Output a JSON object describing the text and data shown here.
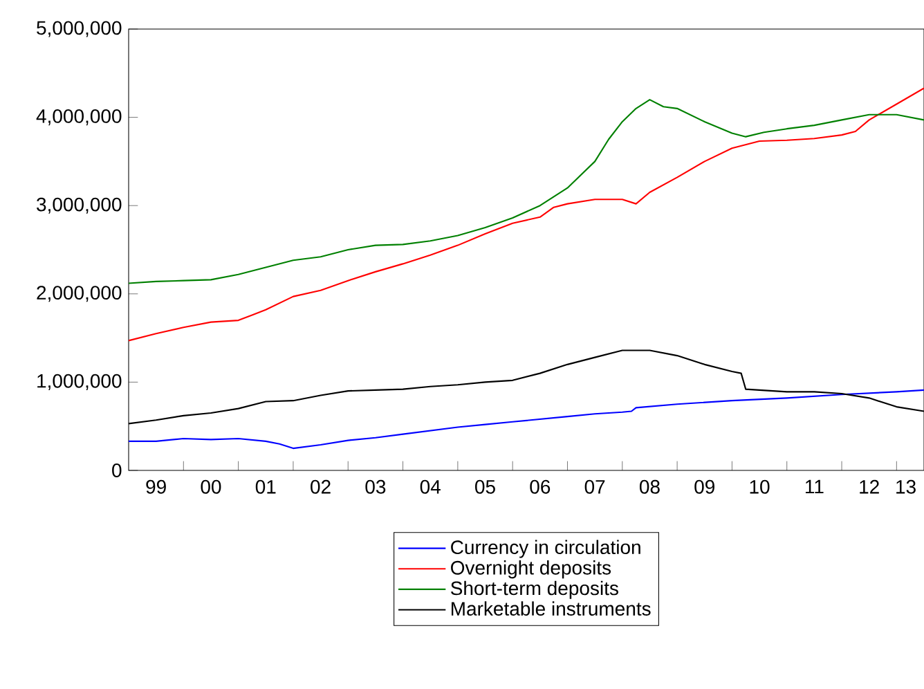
{
  "chart_data": {
    "type": "line",
    "xlim": [
      "1999-01",
      "2013-07"
    ],
    "xticks": [
      {
        "value": "1999-07",
        "label": "99"
      },
      {
        "value": "2000-07",
        "label": "00"
      },
      {
        "value": "2001-07",
        "label": "01"
      },
      {
        "value": "2002-07",
        "label": "02"
      },
      {
        "value": "2003-07",
        "label": "03"
      },
      {
        "value": "2004-07",
        "label": "04"
      },
      {
        "value": "2005-07",
        "label": "05"
      },
      {
        "value": "2006-07",
        "label": "06"
      },
      {
        "value": "2007-07",
        "label": "07"
      },
      {
        "value": "2008-07",
        "label": "08"
      },
      {
        "value": "2009-07",
        "label": "09"
      },
      {
        "value": "2010-07",
        "label": "10"
      },
      {
        "value": "2011-07",
        "label": "11"
      },
      {
        "value": "2012-07",
        "label": "12"
      },
      {
        "value": "2013-03",
        "label": "13"
      }
    ],
    "ylim": [
      0,
      5000000
    ],
    "yticks": [
      {
        "value": 0,
        "label": "0"
      },
      {
        "value": 1000000,
        "label": "1,000,000"
      },
      {
        "value": 2000000,
        "label": "2,000,000"
      },
      {
        "value": 3000000,
        "label": "3,000,000"
      },
      {
        "value": 4000000,
        "label": "4,000,000"
      },
      {
        "value": 5000000,
        "label": "5,000,000"
      }
    ],
    "legend": "bottom",
    "marker": "none",
    "line_style": "solid",
    "series": [
      {
        "name": "Currency in circulation",
        "color": "#0000ff",
        "x": [
          "1999-01",
          "1999-07",
          "2000-01",
          "2000-07",
          "2001-01",
          "2001-07",
          "2001-10",
          "2002-01",
          "2002-07",
          "2003-01",
          "2003-07",
          "2004-01",
          "2004-07",
          "2005-01",
          "2005-07",
          "2006-01",
          "2006-07",
          "2007-01",
          "2007-07",
          "2008-01",
          "2008-03",
          "2008-04",
          "2009-01",
          "2010-01",
          "2011-01",
          "2012-01",
          "2013-01",
          "2013-07"
        ],
        "values": [
          330000,
          330000,
          360000,
          350000,
          360000,
          330000,
          300000,
          250000,
          290000,
          340000,
          370000,
          410000,
          450000,
          490000,
          520000,
          550000,
          580000,
          610000,
          640000,
          660000,
          670000,
          710000,
          750000,
          790000,
          820000,
          860000,
          890000,
          910000
        ]
      },
      {
        "name": "Overnight deposits",
        "color": "#ff0000",
        "x": [
          "1999-01",
          "1999-07",
          "2000-01",
          "2000-07",
          "2001-01",
          "2001-04",
          "2001-07",
          "2002-01",
          "2002-07",
          "2003-01",
          "2003-07",
          "2004-01",
          "2004-07",
          "2005-01",
          "2005-07",
          "2006-01",
          "2006-07",
          "2006-10",
          "2007-01",
          "2007-07",
          "2008-01",
          "2008-04",
          "2008-07",
          "2009-01",
          "2009-07",
          "2010-01",
          "2010-07",
          "2011-01",
          "2011-07",
          "2012-01",
          "2012-04",
          "2012-07",
          "2013-01",
          "2013-07"
        ],
        "values": [
          1470000,
          1550000,
          1620000,
          1680000,
          1700000,
          1760000,
          1820000,
          1970000,
          2040000,
          2150000,
          2250000,
          2340000,
          2440000,
          2550000,
          2680000,
          2800000,
          2870000,
          2980000,
          3020000,
          3070000,
          3070000,
          3020000,
          3150000,
          3320000,
          3500000,
          3650000,
          3730000,
          3740000,
          3760000,
          3800000,
          3840000,
          3970000,
          4150000,
          4330000
        ]
      },
      {
        "name": "Short-term deposits",
        "color": "#008000",
        "x": [
          "1999-01",
          "1999-07",
          "2000-01",
          "2000-07",
          "2001-01",
          "2001-07",
          "2002-01",
          "2002-07",
          "2003-01",
          "2003-07",
          "2004-01",
          "2004-07",
          "2005-01",
          "2005-07",
          "2006-01",
          "2006-07",
          "2007-01",
          "2007-07",
          "2007-10",
          "2008-01",
          "2008-04",
          "2008-07",
          "2008-10",
          "2009-01",
          "2009-07",
          "2010-01",
          "2010-04",
          "2010-08",
          "2011-01",
          "2011-07",
          "2012-01",
          "2012-07",
          "2013-01",
          "2013-07"
        ],
        "values": [
          2120000,
          2140000,
          2150000,
          2160000,
          2220000,
          2300000,
          2380000,
          2420000,
          2500000,
          2550000,
          2560000,
          2600000,
          2660000,
          2750000,
          2860000,
          3000000,
          3200000,
          3500000,
          3750000,
          3950000,
          4100000,
          4200000,
          4120000,
          4100000,
          3950000,
          3820000,
          3780000,
          3830000,
          3870000,
          3910000,
          3970000,
          4030000,
          4030000,
          3970000
        ]
      },
      {
        "name": "Marketable instruments",
        "color": "#000000",
        "x": [
          "1999-01",
          "1999-07",
          "2000-01",
          "2000-07",
          "2001-01",
          "2001-07",
          "2002-01",
          "2002-07",
          "2003-01",
          "2003-07",
          "2004-01",
          "2004-07",
          "2005-01",
          "2005-07",
          "2006-01",
          "2006-07",
          "2007-01",
          "2007-07",
          "2008-01",
          "2008-07",
          "2009-01",
          "2009-07",
          "2010-01",
          "2010-03",
          "2010-04",
          "2010-07",
          "2011-01",
          "2011-07",
          "2012-01",
          "2012-07",
          "2013-01",
          "2013-07"
        ],
        "values": [
          530000,
          570000,
          620000,
          650000,
          700000,
          780000,
          790000,
          850000,
          900000,
          910000,
          920000,
          950000,
          970000,
          1000000,
          1020000,
          1100000,
          1200000,
          1280000,
          1360000,
          1360000,
          1300000,
          1200000,
          1120000,
          1100000,
          920000,
          910000,
          890000,
          890000,
          870000,
          820000,
          720000,
          670000
        ]
      }
    ]
  }
}
